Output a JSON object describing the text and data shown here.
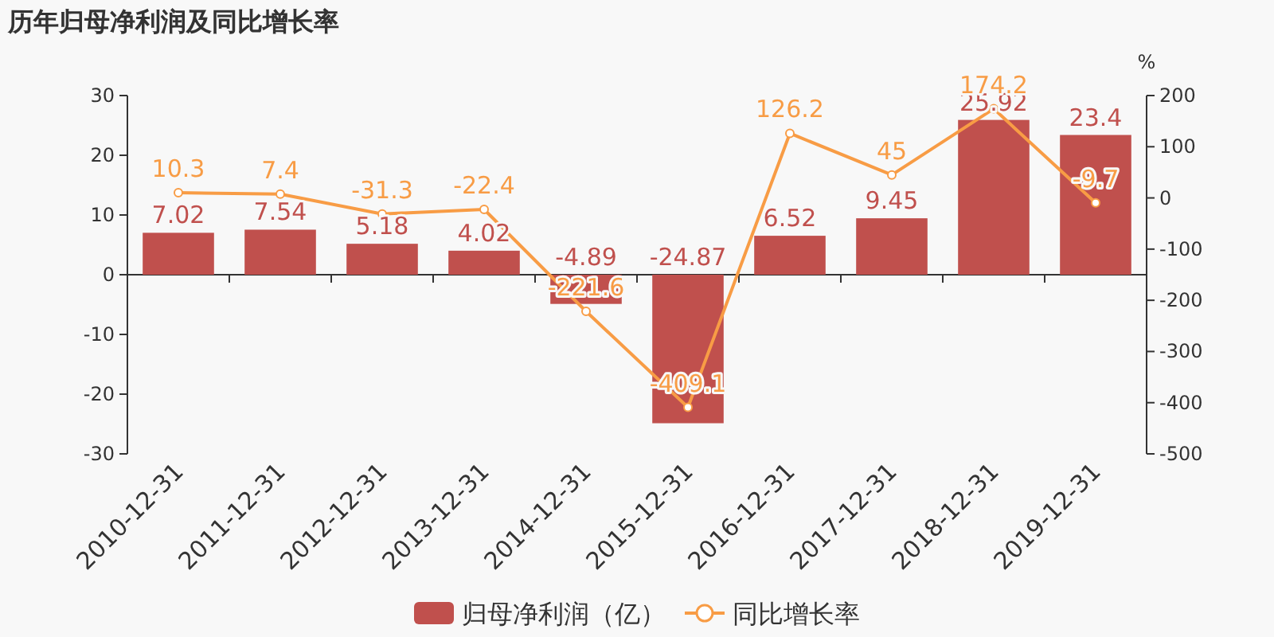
{
  "chart_data": {
    "type": "bar",
    "title": "历年归母净利润及同比增长率",
    "y2label": "%",
    "categories": [
      "2010-12-31",
      "2011-12-31",
      "2012-12-31",
      "2013-12-31",
      "2014-12-31",
      "2015-12-31",
      "2016-12-31",
      "2017-12-31",
      "2018-12-31",
      "2019-12-31"
    ],
    "series": [
      {
        "name": "归母净利润（亿）",
        "color": "#c0504d",
        "values": [
          7.02,
          7.54,
          5.18,
          4.02,
          -4.89,
          -24.87,
          6.52,
          9.45,
          25.92,
          23.4
        ]
      },
      {
        "name": "同比增长率",
        "type": "line",
        "axis": "y2",
        "color": "#f89c45",
        "values": [
          10.3,
          7.4,
          -31.3,
          -22.4,
          -221.6,
          -409.1,
          126.2,
          45,
          174.2,
          -9.7
        ]
      }
    ],
    "ylim": [
      -30,
      30
    ],
    "yticks": [
      -30,
      -20,
      -10,
      0,
      10,
      20,
      30
    ],
    "y2lim": [
      -500,
      200
    ],
    "y2ticks": [
      -500,
      -400,
      -300,
      -200,
      -100,
      0,
      100,
      200
    ],
    "data_labels": true,
    "legend": "bottom",
    "marker": "circle"
  }
}
